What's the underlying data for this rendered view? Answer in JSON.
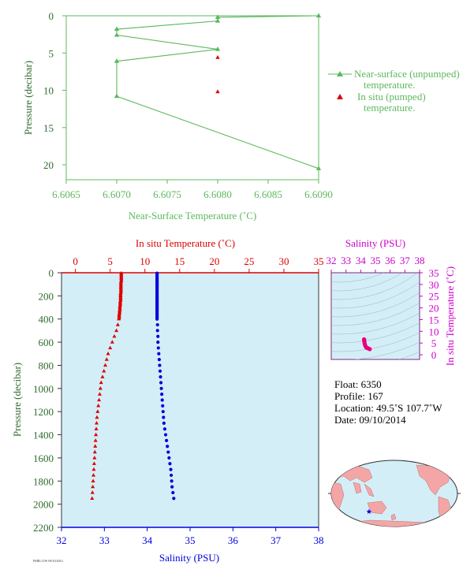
{
  "chart_data": [
    {
      "id": "near_surface",
      "type": "line",
      "xlabel": "Near-Surface Temperature (˚C)",
      "ylabel": "Pressure (decibar)",
      "xlim": [
        6.6065,
        6.609
      ],
      "ylim": [
        0,
        22
      ],
      "y_inverted": true,
      "xticks": [
        "6.6065",
        "6.6070",
        "6.6075",
        "6.6080",
        "6.6085",
        "6.6090"
      ],
      "yticks": [
        "0",
        "5",
        "10",
        "15",
        "20"
      ],
      "legend_position": "right",
      "series": [
        {
          "name": "Near-surface (unpumped) temperature.",
          "color": "#5cb85c",
          "marker": "triangle",
          "points": [
            [
              6.609,
              0.0
            ],
            [
              6.608,
              0.2
            ],
            [
              6.608,
              0.7
            ],
            [
              6.607,
              1.8
            ],
            [
              6.607,
              2.6
            ],
            [
              6.608,
              4.5
            ],
            [
              6.607,
              6.1
            ],
            [
              6.607,
              10.8
            ],
            [
              6.609,
              20.5
            ]
          ]
        },
        {
          "name": "In situ (pumped) temperature.",
          "color": "#dd0000",
          "marker": "triangle",
          "points": [
            [
              6.608,
              5.6
            ],
            [
              6.608,
              10.2
            ]
          ]
        }
      ]
    },
    {
      "id": "profile",
      "type": "scatter",
      "top_xlabel": "In situ Temperature (˚C)",
      "bottom_xlabel": "Salinity (PSU)",
      "ylabel": "Pressure (decibar)",
      "top_xlim": [
        -2,
        35
      ],
      "bottom_xlim": [
        32,
        38
      ],
      "ylim": [
        0,
        2200
      ],
      "y_inverted": true,
      "top_xticks": [
        "0",
        "5",
        "10",
        "15",
        "20",
        "25",
        "30",
        "35"
      ],
      "bottom_xticks": [
        "32",
        "33",
        "34",
        "35",
        "36",
        "37",
        "38"
      ],
      "yticks": [
        "0",
        "200",
        "400",
        "600",
        "800",
        "1000",
        "1200",
        "1400",
        "1600",
        "1800",
        "2000",
        "2200"
      ],
      "background": "#d4eef7",
      "series": [
        {
          "name": "In situ Temperature",
          "color": "#dd0000",
          "marker": "triangle",
          "pressure": [
            4,
            10,
            20,
            30,
            40,
            50,
            60,
            70,
            80,
            90,
            100,
            110,
            120,
            130,
            140,
            150,
            160,
            170,
            180,
            190,
            200,
            210,
            220,
            230,
            240,
            250,
            260,
            270,
            280,
            290,
            300,
            310,
            320,
            330,
            340,
            350,
            360,
            370,
            380,
            390,
            400,
            450,
            500,
            550,
            600,
            650,
            700,
            750,
            800,
            850,
            900,
            950,
            1000,
            1050,
            1100,
            1150,
            1200,
            1250,
            1300,
            1350,
            1400,
            1450,
            1500,
            1550,
            1600,
            1650,
            1700,
            1750,
            1800,
            1850,
            1900,
            1950
          ],
          "values": [
            6.6,
            6.6,
            6.6,
            6.6,
            6.6,
            6.6,
            6.6,
            6.6,
            6.55,
            6.55,
            6.55,
            6.55,
            6.55,
            6.55,
            6.55,
            6.55,
            6.55,
            6.55,
            6.5,
            6.5,
            6.5,
            6.5,
            6.5,
            6.5,
            6.5,
            6.45,
            6.45,
            6.45,
            6.45,
            6.4,
            6.4,
            6.4,
            6.4,
            6.35,
            6.35,
            6.35,
            6.3,
            6.3,
            6.3,
            6.3,
            6.25,
            6.1,
            5.9,
            5.6,
            5.3,
            5.0,
            4.7,
            4.5,
            4.3,
            4.1,
            3.9,
            3.7,
            3.6,
            3.5,
            3.4,
            3.3,
            3.2,
            3.1,
            3.05,
            3.0,
            2.95,
            2.9,
            2.85,
            2.8,
            2.75,
            2.7,
            2.65,
            2.6,
            2.55,
            2.5,
            2.45,
            2.4
          ]
        },
        {
          "name": "Salinity",
          "color": "#0000dd",
          "marker": "circle",
          "pressure": [
            4,
            10,
            20,
            30,
            40,
            50,
            60,
            70,
            80,
            90,
            100,
            110,
            120,
            130,
            140,
            150,
            160,
            170,
            180,
            190,
            200,
            210,
            220,
            230,
            240,
            250,
            260,
            270,
            280,
            290,
            300,
            310,
            320,
            330,
            340,
            350,
            360,
            370,
            380,
            390,
            400,
            450,
            500,
            550,
            600,
            650,
            700,
            750,
            800,
            850,
            900,
            950,
            1000,
            1050,
            1100,
            1150,
            1200,
            1250,
            1300,
            1350,
            1400,
            1450,
            1500,
            1550,
            1600,
            1650,
            1700,
            1750,
            1800,
            1850,
            1900,
            1950
          ],
          "values": [
            34.23,
            34.23,
            34.23,
            34.23,
            34.23,
            34.23,
            34.23,
            34.23,
            34.23,
            34.23,
            34.23,
            34.23,
            34.23,
            34.23,
            34.23,
            34.23,
            34.23,
            34.23,
            34.23,
            34.23,
            34.23,
            34.23,
            34.23,
            34.23,
            34.23,
            34.23,
            34.23,
            34.23,
            34.23,
            34.23,
            34.23,
            34.23,
            34.23,
            34.23,
            34.23,
            34.23,
            34.23,
            34.23,
            34.23,
            34.23,
            34.23,
            34.24,
            34.24,
            34.25,
            34.25,
            34.26,
            34.27,
            34.28,
            34.29,
            34.3,
            34.31,
            34.32,
            34.33,
            34.34,
            34.35,
            34.36,
            34.37,
            34.38,
            34.39,
            34.41,
            34.43,
            34.45,
            34.47,
            34.49,
            34.51,
            34.53,
            34.55,
            34.56,
            34.57,
            34.58,
            34.6,
            34.62
          ]
        }
      ]
    },
    {
      "id": "ts_diagram",
      "type": "scatter",
      "xlabel": "Salinity (PSU)",
      "ylabel": "In situ Temperature (˚C)",
      "xlim": [
        32,
        38
      ],
      "ylim": [
        -2,
        35
      ],
      "xticks": [
        "32",
        "33",
        "34",
        "35",
        "36",
        "37",
        "38"
      ],
      "yticks": [
        "0",
        "5",
        "10",
        "15",
        "20",
        "25",
        "30",
        "35"
      ],
      "color": "#e6007e",
      "points": [
        [
          34.23,
          6.6
        ],
        [
          34.23,
          6.5
        ],
        [
          34.23,
          6.3
        ],
        [
          34.24,
          6.1
        ],
        [
          34.25,
          5.6
        ],
        [
          34.26,
          5.0
        ],
        [
          34.28,
          4.5
        ],
        [
          34.3,
          4.1
        ],
        [
          34.32,
          3.7
        ],
        [
          34.35,
          3.4
        ],
        [
          34.38,
          3.1
        ],
        [
          34.43,
          2.9
        ],
        [
          34.49,
          2.8
        ],
        [
          34.55,
          2.6
        ],
        [
          34.58,
          2.5
        ],
        [
          34.62,
          2.4
        ]
      ]
    }
  ],
  "float_info": {
    "float": "Float:  6350",
    "profile": "Profile:  167",
    "location": "Location:  49.5˚S  107.7˚W",
    "date": "Date:  09/10/2014"
  },
  "map": {
    "marker_lon": -107.7,
    "marker_lat": -49.5,
    "marker_color": "#0000ff",
    "land_color": "#f4a6a6",
    "ocean_color": "#d4eef7"
  },
  "footer_text": "PMEL/UW 09/10/2014"
}
